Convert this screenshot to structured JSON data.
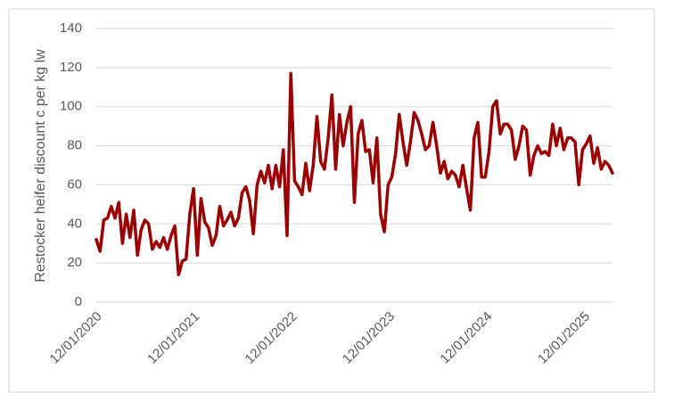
{
  "chart_data": {
    "type": "line",
    "y_label": "Restocker heifer discount c per kg lw",
    "color": "#9b0000",
    "grid": true,
    "ylim": [
      0,
      140
    ],
    "yticks": [
      0,
      20,
      40,
      60,
      80,
      100,
      120,
      140
    ],
    "xlim": [
      "12/01/2020",
      "27/04/2025"
    ],
    "xticks": [
      "12/01/2020",
      "12/01/2021",
      "12/01/2022",
      "12/01/2023",
      "12/01/2024",
      "12/01/2025"
    ],
    "x": [
      "12/01/2020",
      "26/01/2020",
      "09/02/2020",
      "23/02/2020",
      "08/03/2020",
      "22/03/2020",
      "05/04/2020",
      "19/04/2020",
      "03/05/2020",
      "17/05/2020",
      "31/05/2020",
      "14/06/2020",
      "28/06/2020",
      "12/07/2020",
      "26/07/2020",
      "09/08/2020",
      "23/08/2020",
      "06/09/2020",
      "20/09/2020",
      "04/10/2020",
      "18/10/2020",
      "01/11/2020",
      "15/11/2020",
      "29/11/2020",
      "13/12/2020",
      "27/12/2020",
      "10/01/2021",
      "24/01/2021",
      "07/02/2021",
      "21/02/2021",
      "07/03/2021",
      "21/03/2021",
      "04/04/2021",
      "18/04/2021",
      "02/05/2021",
      "16/05/2021",
      "30/05/2021",
      "13/06/2021",
      "27/06/2021",
      "11/07/2021",
      "25/07/2021",
      "08/08/2021",
      "22/08/2021",
      "05/09/2021",
      "19/09/2021",
      "03/10/2021",
      "17/10/2021",
      "31/10/2021",
      "14/11/2021",
      "28/11/2021",
      "12/12/2021",
      "26/12/2021",
      "09/01/2022",
      "23/01/2022",
      "06/02/2022",
      "20/02/2022",
      "06/03/2022",
      "20/03/2022",
      "03/04/2022",
      "17/04/2022",
      "01/05/2022",
      "15/05/2022",
      "29/05/2022",
      "12/06/2022",
      "26/06/2022",
      "10/07/2022",
      "24/07/2022",
      "07/08/2022",
      "21/08/2022",
      "04/09/2022",
      "18/09/2022",
      "02/10/2022",
      "16/10/2022",
      "30/10/2022",
      "13/11/2022",
      "27/11/2022",
      "11/12/2022",
      "25/12/2022",
      "08/01/2023",
      "22/01/2023",
      "05/02/2023",
      "19/02/2023",
      "05/03/2023",
      "19/03/2023",
      "02/04/2023",
      "16/04/2023",
      "30/04/2023",
      "14/05/2023",
      "28/05/2023",
      "11/06/2023",
      "25/06/2023",
      "09/07/2023",
      "23/07/2023",
      "06/08/2023",
      "20/08/2023",
      "03/09/2023",
      "17/09/2023",
      "01/10/2023",
      "15/10/2023",
      "29/10/2023",
      "12/11/2023",
      "26/11/2023",
      "10/12/2023",
      "24/12/2023",
      "07/01/2024",
      "21/01/2024",
      "04/02/2024",
      "18/02/2024",
      "03/03/2024",
      "17/03/2024",
      "31/03/2024",
      "14/04/2024",
      "28/04/2024",
      "12/05/2024",
      "26/05/2024",
      "09/06/2024",
      "23/06/2024",
      "07/07/2024",
      "21/07/2024",
      "04/08/2024",
      "18/08/2024",
      "01/09/2024",
      "15/09/2024",
      "29/09/2024",
      "13/10/2024",
      "27/10/2024",
      "10/11/2024",
      "24/11/2024",
      "08/12/2024",
      "22/12/2024",
      "05/01/2025",
      "19/01/2025",
      "02/02/2025",
      "16/02/2025",
      "02/03/2025",
      "16/03/2025",
      "30/03/2025",
      "13/04/2025",
      "27/04/2025"
    ],
    "values": [
      32,
      26,
      42,
      43,
      49,
      43,
      51,
      30,
      45,
      33,
      47,
      24,
      37,
      42,
      40,
      27,
      31,
      28,
      33,
      27,
      34,
      39,
      14,
      21,
      22,
      45,
      58,
      24,
      53,
      41,
      38,
      29,
      34,
      49,
      39,
      42,
      46,
      39,
      43,
      56,
      59,
      52,
      35,
      60,
      67,
      61,
      70,
      58,
      70,
      59,
      78,
      34,
      117,
      62,
      59,
      55,
      71,
      57,
      70,
      95,
      72,
      68,
      84,
      106,
      68,
      96,
      80,
      92,
      100,
      51,
      86,
      93,
      77,
      78,
      61,
      84,
      45,
      36,
      60,
      64,
      76,
      96,
      82,
      70,
      82,
      97,
      93,
      86,
      78,
      80,
      92,
      80,
      66,
      72,
      63,
      67,
      65,
      59,
      70,
      58,
      47,
      84,
      92,
      64,
      64,
      77,
      100,
      103,
      86,
      91,
      91,
      88,
      73,
      80,
      90,
      88,
      65,
      75,
      80,
      76,
      77,
      75,
      91,
      80,
      89,
      78,
      84,
      84,
      82,
      60,
      78,
      81,
      85,
      71,
      79,
      68,
      72,
      70,
      66
    ]
  }
}
